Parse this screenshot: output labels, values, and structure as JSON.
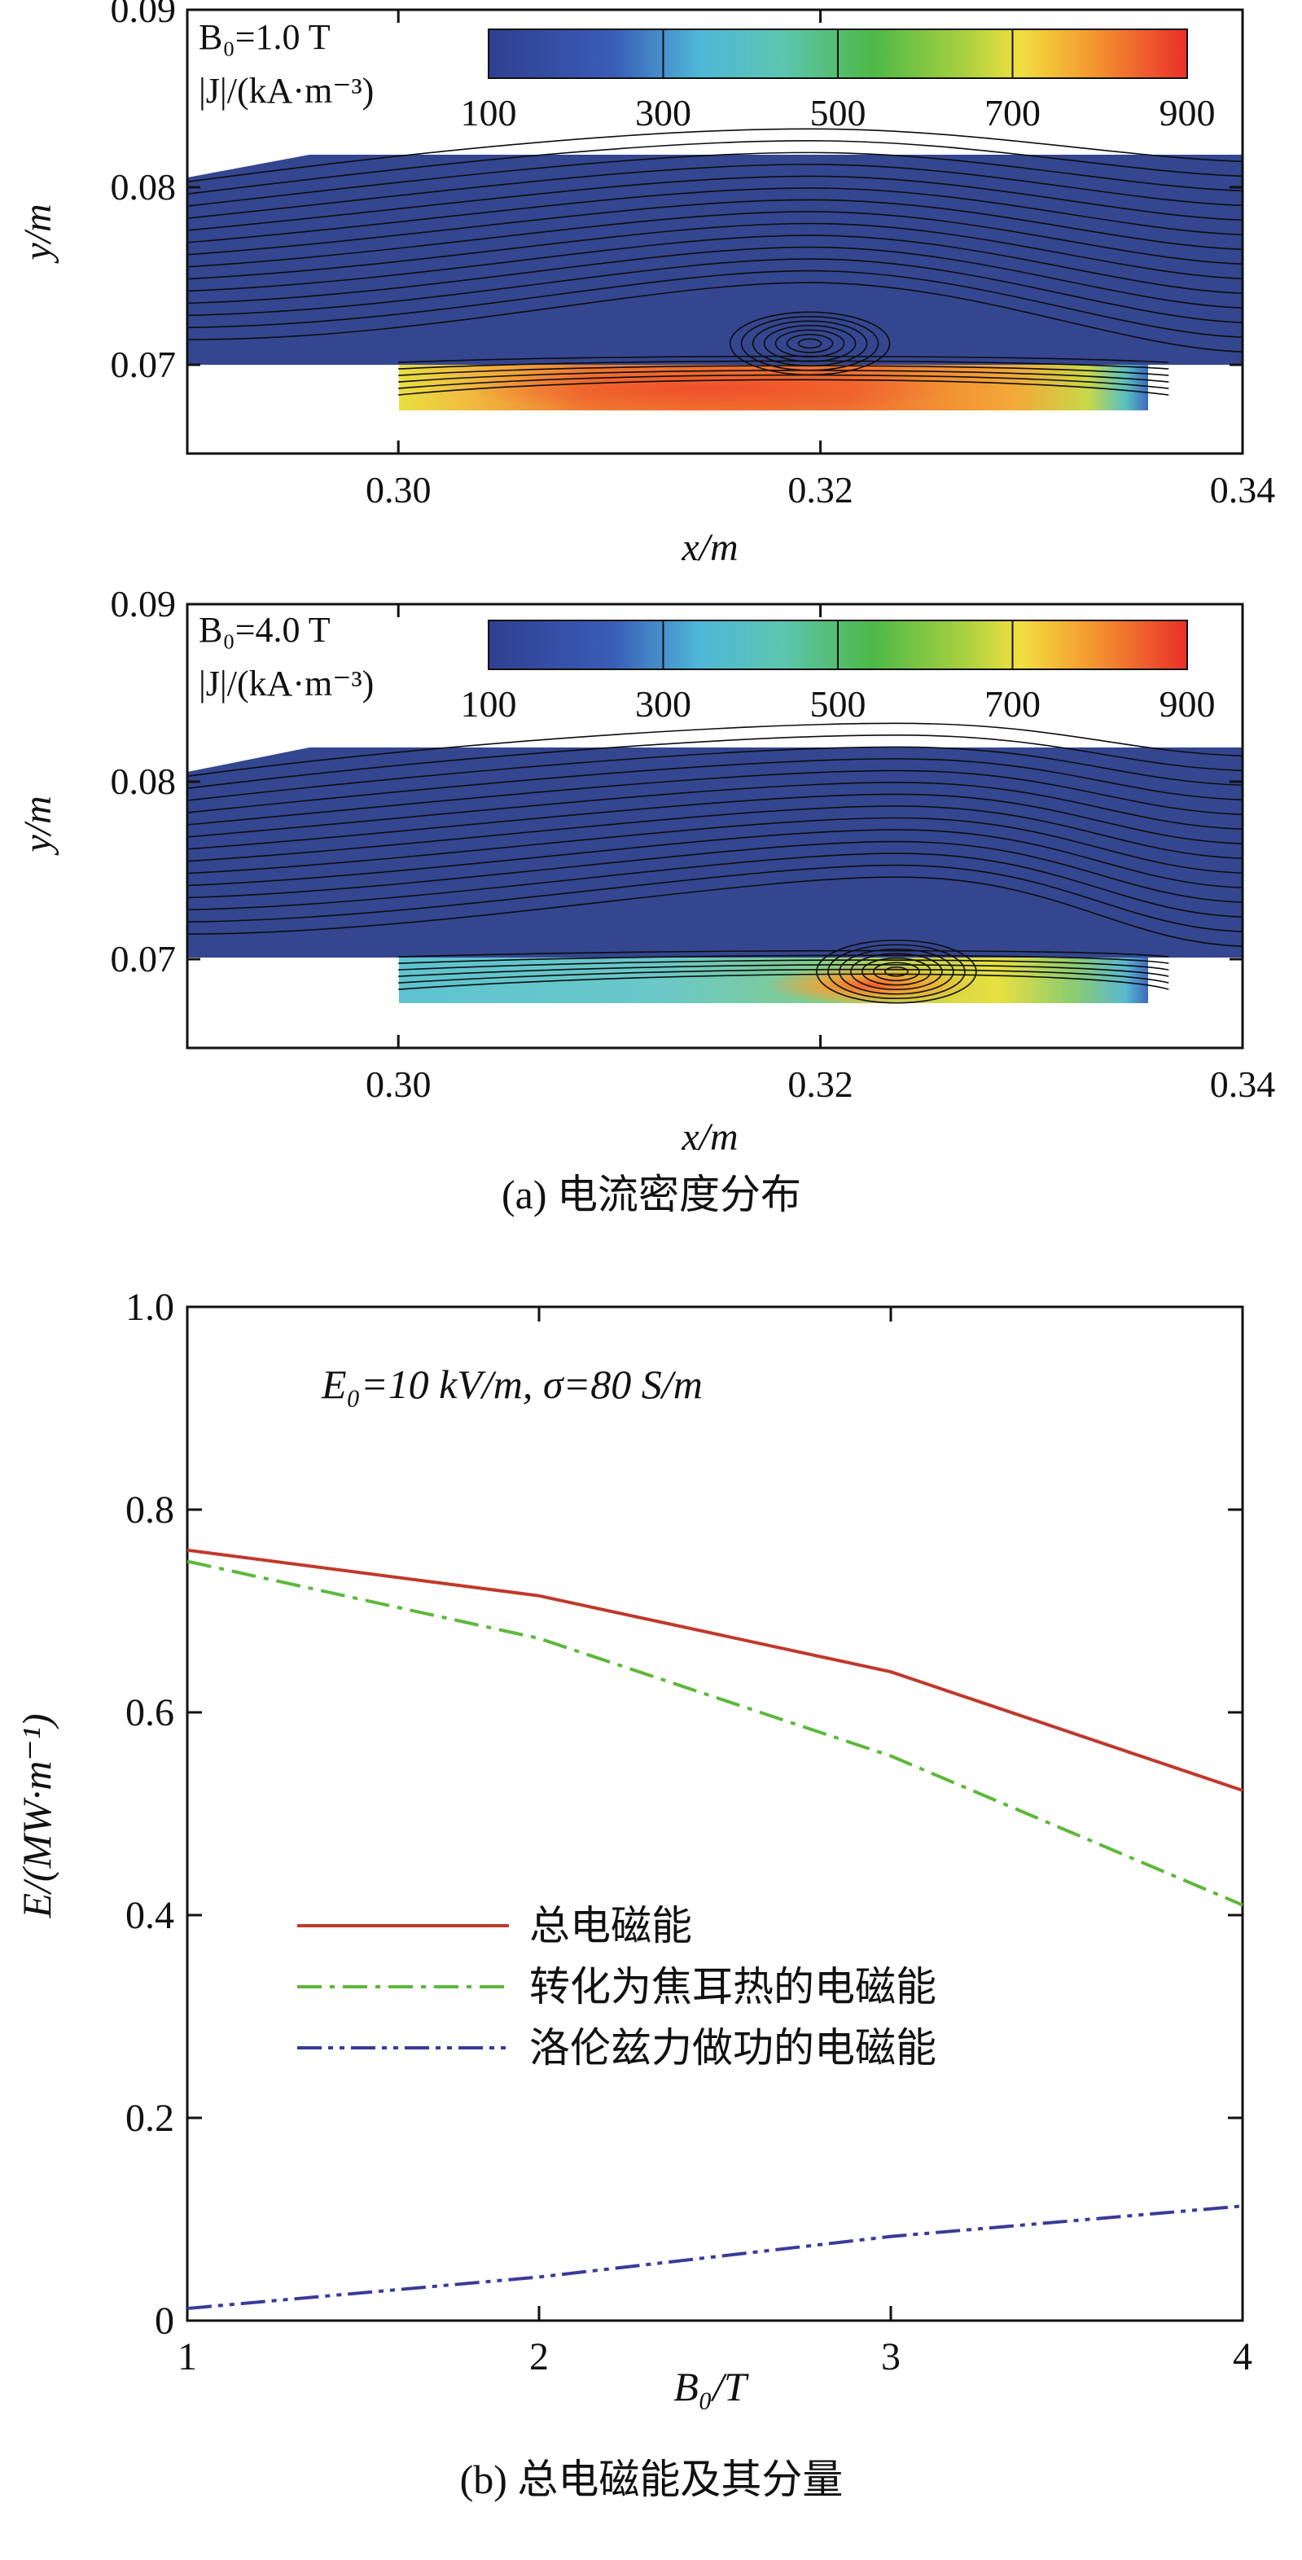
{
  "chart_data": [
    {
      "type": "heatmap",
      "panel": "a-top",
      "field_label": "B₀=1.0 T",
      "colorbar_label": "|J|/(kA·m⁻³)",
      "colorbar_ticks": [
        100,
        300,
        500,
        700,
        900
      ],
      "colorbar_range": [
        100,
        900
      ],
      "xlabel": "x/m",
      "ylabel": "y/m",
      "xlim": [
        0.29,
        0.34
      ],
      "ylim": [
        0.065,
        0.09
      ],
      "xticks": [
        "0.30",
        "0.32",
        "0.34"
      ],
      "yticks": [
        "0.07",
        "0.08",
        "0.09"
      ],
      "vortex_center": [
        0.3195,
        0.0712
      ]
    },
    {
      "type": "heatmap",
      "panel": "a-bottom",
      "field_label": "B₀=4.0 T",
      "colorbar_label": "|J|/(kA·m⁻³)",
      "colorbar_ticks": [
        100,
        300,
        500,
        700,
        900
      ],
      "colorbar_range": [
        100,
        900
      ],
      "xlabel": "x/m",
      "ylabel": "y/m",
      "xlim": [
        0.29,
        0.34
      ],
      "ylim": [
        0.065,
        0.09
      ],
      "xticks": [
        "0.30",
        "0.32",
        "0.34"
      ],
      "yticks": [
        "0.07",
        "0.08",
        "0.09"
      ],
      "vortex_center": [
        0.3236,
        0.0693
      ]
    },
    {
      "type": "line",
      "panel": "b",
      "annotation": "E₀=10 kV/m,  σ=80 S/m",
      "xlabel": "B₀/T",
      "ylabel": "E/(MW·m⁻¹)",
      "xlim": [
        1,
        4
      ],
      "ylim": [
        0,
        1.0
      ],
      "xticks": [
        "1",
        "2",
        "3",
        "4"
      ],
      "yticks": [
        "0",
        "0.2",
        "0.4",
        "0.6",
        "0.8",
        "1.0"
      ],
      "x": [
        1,
        2,
        3,
        4
      ],
      "legend_position": "center-left",
      "series": [
        {
          "name": "总电磁能",
          "values": [
            0.76,
            0.715,
            0.64,
            0.523
          ],
          "color": "#c0392b",
          "dash": "solid"
        },
        {
          "name": "转化为焦耳热的电磁能",
          "values": [
            0.749,
            0.673,
            0.557,
            0.41
          ],
          "color": "#5cb83a",
          "dash": "dashdot"
        },
        {
          "name": "洛伦兹力做功的电磁能",
          "values": [
            0.012,
            0.043,
            0.083,
            0.113
          ],
          "color": "#3a3a9a",
          "dash": "dashdotdot"
        }
      ]
    }
  ],
  "captions": {
    "a": "(a) 电流密度分布",
    "b": "(b) 总电磁能及其分量"
  }
}
